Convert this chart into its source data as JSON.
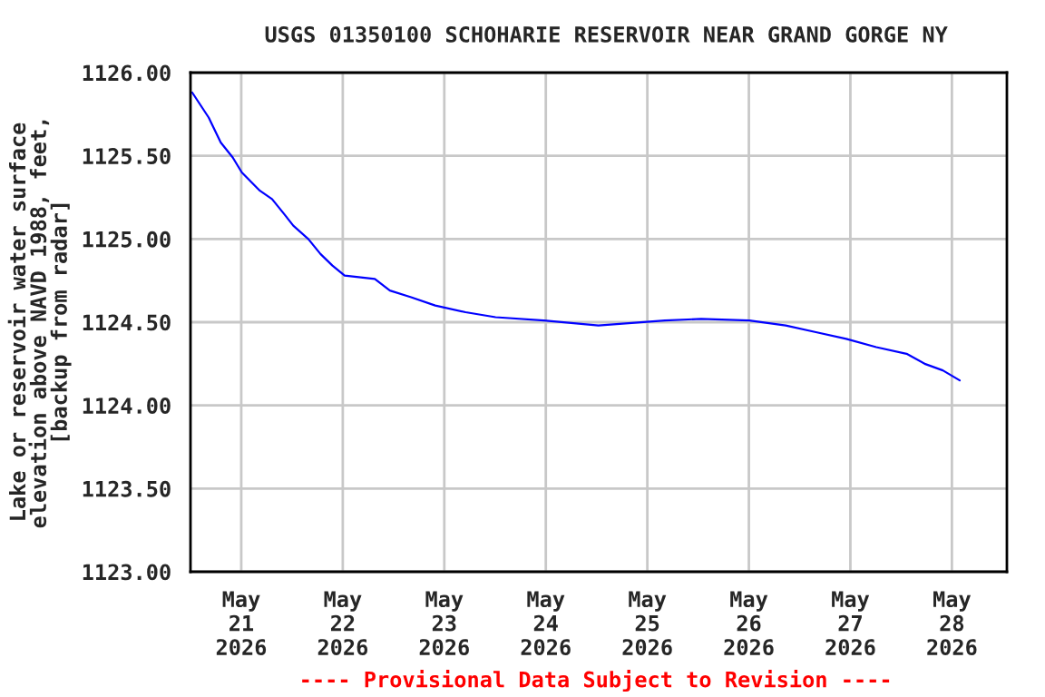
{
  "chart_data": {
    "type": "line",
    "title": "USGS 01350100 SCHOHARIE RESERVOIR NEAR GRAND GORGE NY",
    "ylabel": "Lake or reservoir water surface\nelevation above NAVD 1988, feet,\n[backup from radar]",
    "annotations": [
      "---- Provisional Data Subject to Revision ----"
    ],
    "x": [
      "2026-05-20T12:25",
      "2026-05-20T16:18",
      "2026-05-20T19:09",
      "2026-05-20T21:59",
      "2026-05-21T00:08",
      "2026-05-21T04:25",
      "2026-05-21T07:17",
      "2026-05-21T10:09",
      "2026-05-21T12:18",
      "2026-05-21T15:51",
      "2026-05-21T18:44",
      "2026-05-21T21:33",
      "2026-05-22T00:26",
      "2026-05-22T07:35",
      "2026-05-22T11:08",
      "2026-05-22T16:09",
      "2026-05-22T21:51",
      "2026-05-23T05:01",
      "2026-05-23T12:07",
      "2026-05-23T23:34",
      "2026-05-24T12:26",
      "2026-05-25T04:09",
      "2026-05-25T12:43",
      "2026-05-26T00:07",
      "2026-05-26T08:42",
      "2026-05-26T15:51",
      "2026-05-26T23:01",
      "2026-05-27T06:07",
      "2026-05-27T13:17",
      "2026-05-27T17:34",
      "2026-05-27T21:51",
      "2026-05-28T01:51"
    ],
    "series": [
      {
        "color": "#0000ff",
        "values": [
          1125.88,
          1125.73,
          1125.58,
          1125.49,
          1125.4,
          1125.29,
          1125.24,
          1125.15,
          1125.08,
          1125.0,
          1124.91,
          1124.84,
          1124.78,
          1124.76,
          1124.69,
          1124.65,
          1124.6,
          1124.56,
          1124.53,
          1124.51,
          1124.48,
          1124.51,
          1124.52,
          1124.51,
          1124.48,
          1124.44,
          1124.4,
          1124.35,
          1124.31,
          1124.25,
          1124.21,
          1124.15
        ]
      }
    ],
    "xlim": [
      "2026-05-20T12:00",
      "2026-05-28T13:00"
    ],
    "xticks": [
      {
        "value": "2026-05-21",
        "label": "May\n21\n2026"
      },
      {
        "value": "2026-05-22",
        "label": "May\n22\n2026"
      },
      {
        "value": "2026-05-23",
        "label": "May\n23\n2026"
      },
      {
        "value": "2026-05-24",
        "label": "May\n24\n2026"
      },
      {
        "value": "2026-05-25",
        "label": "May\n25\n2026"
      },
      {
        "value": "2026-05-26",
        "label": "May\n26\n2026"
      },
      {
        "value": "2026-05-27",
        "label": "May\n27\n2026"
      },
      {
        "value": "2026-05-28",
        "label": "May\n28\n2026"
      }
    ],
    "ylim": [
      1123,
      1126
    ],
    "yticks": [
      {
        "value": 1123,
        "label": "1123.00"
      },
      {
        "value": 1123.5,
        "label": "1123.50"
      },
      {
        "value": 1124,
        "label": "1124.00"
      },
      {
        "value": 1124.5,
        "label": "1124.50"
      },
      {
        "value": 1125,
        "label": "1125.00"
      },
      {
        "value": 1125.5,
        "label": "1125.50"
      },
      {
        "value": 1126,
        "label": "1126.00"
      }
    ],
    "grid": true,
    "line_style": "solid",
    "marker": "none"
  }
}
